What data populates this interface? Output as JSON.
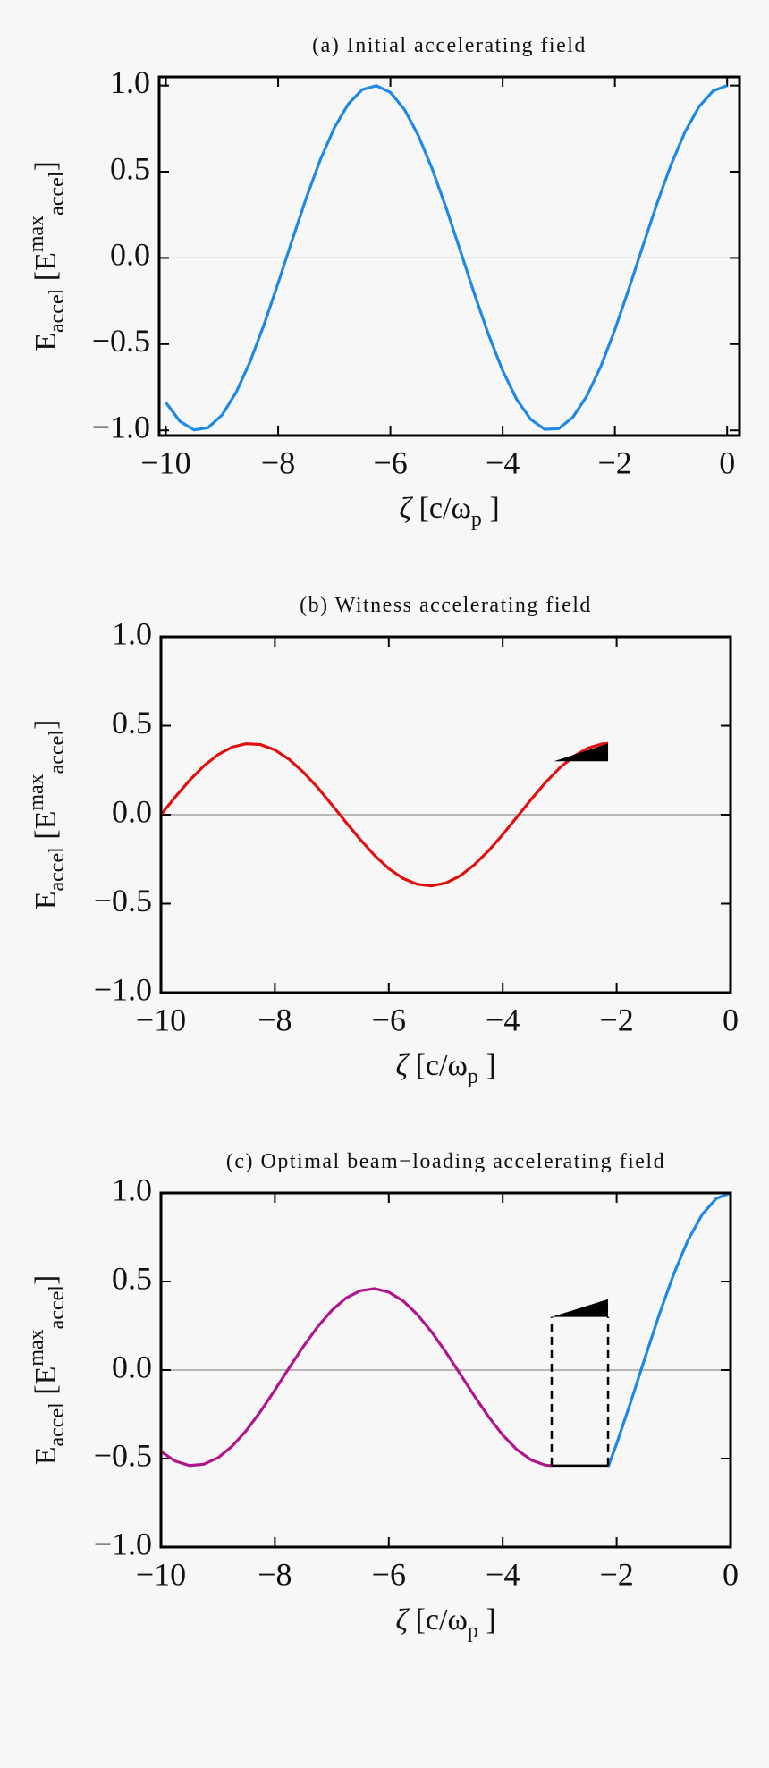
{
  "chart_data": [
    {
      "type": "line",
      "title": "(a) Initial accelerating field",
      "xlabel": [
        {
          "text": "ζ",
          "italic": true
        },
        {
          "text": " [c/ω"
        },
        {
          "text": "p",
          "shift": "sub"
        },
        {
          "text": " ]"
        }
      ],
      "ylabel": [
        {
          "text": "E"
        },
        {
          "text": "accel",
          "shift": "sub"
        },
        {
          "text": " [E"
        },
        {
          "text": "max",
          "shift": "sup"
        },
        {
          "text": "accel",
          "shift": "sub"
        },
        {
          "text": "]"
        }
      ],
      "xlim": [
        -10.12,
        0.22
      ],
      "ylim": [
        -1.03,
        1.05
      ],
      "xticks": [
        {
          "value": -10,
          "label": "−10"
        },
        {
          "value": -8,
          "label": "−8"
        },
        {
          "value": -6,
          "label": "−6"
        },
        {
          "value": -4,
          "label": "−4"
        },
        {
          "value": -2,
          "label": "−2"
        },
        0
      ],
      "yticks": [
        {
          "value": -1,
          "label": "−1.0"
        },
        {
          "value": -0.5,
          "label": "−0.5"
        },
        {
          "value": 0,
          "label": "0.0"
        },
        0.5,
        {
          "value": 1,
          "label": "1.0"
        }
      ],
      "zero_line": true,
      "series": [
        {
          "color": "#1e88e5",
          "x": [
            -10,
            -9.75,
            -9.5,
            -9.25,
            -9,
            -8.75,
            -8.5,
            -8.25,
            -8,
            -7.75,
            -7.5,
            -7.25,
            -7,
            -6.75,
            -6.5,
            -6.25,
            -6,
            -5.75,
            -5.5,
            -5.25,
            -5,
            -4.75,
            -4.5,
            -4.25,
            -4,
            -3.75,
            -3.5,
            -3.25,
            -3,
            -2.75,
            -2.5,
            -2.25,
            -2,
            -1.75,
            -1.5,
            -1.25,
            -1,
            -0.75,
            -0.5,
            -0.25,
            0
          ],
          "values": [
            -0.8391,
            -0.9476,
            -0.9972,
            -0.9848,
            -0.9111,
            -0.7807,
            -0.602,
            -0.3857,
            -0.1455,
            0.1037,
            0.3466,
            0.5683,
            0.7539,
            0.893,
            0.9766,
            0.9994,
            0.9602,
            0.8612,
            0.7087,
            0.5117,
            0.2837,
            0.0376,
            -0.2108,
            -0.4461,
            -0.6536,
            -0.8206,
            -0.9365,
            -0.9941,
            -0.99,
            -0.9243,
            -0.8011,
            -0.6282,
            -0.4161,
            -0.1782,
            0.0707,
            0.3153,
            0.5403,
            0.7317,
            0.8776,
            0.9689,
            1
          ]
        }
      ]
    },
    {
      "type": "line",
      "title": "(b) Witness accelerating field",
      "xlabel": [
        {
          "text": "ζ",
          "italic": true
        },
        {
          "text": " [c/ω"
        },
        {
          "text": "p",
          "shift": "sub"
        },
        {
          "text": " ]"
        }
      ],
      "ylabel": [
        {
          "text": "E"
        },
        {
          "text": "accel",
          "shift": "sub"
        },
        {
          "text": " [E"
        },
        {
          "text": "max",
          "shift": "sup"
        },
        {
          "text": "accel",
          "shift": "sub"
        },
        {
          "text": "]"
        }
      ],
      "xlim": [
        -10,
        0
      ],
      "ylim": [
        -1,
        1
      ],
      "xticks": [
        {
          "value": -10,
          "label": "−10"
        },
        {
          "value": -8,
          "label": "−8"
        },
        {
          "value": -6,
          "label": "−6"
        },
        {
          "value": -4,
          "label": "−4"
        },
        {
          "value": -2,
          "label": "−2"
        },
        0
      ],
      "yticks": [
        {
          "value": -1,
          "label": "−1.0"
        },
        {
          "value": -0.5,
          "label": "−0.5"
        },
        {
          "value": 0,
          "label": "0.0"
        },
        0.5,
        {
          "value": 1,
          "label": "1.0"
        }
      ],
      "zero_line": true,
      "series": [
        {
          "color": "#e01010",
          "x": [
            -10,
            -9.75,
            -9.5,
            -9.25,
            -9,
            -8.75,
            -8.5,
            -8.25,
            -8,
            -7.75,
            -7.5,
            -7.25,
            -7,
            -6.75,
            -6.5,
            -6.25,
            -6,
            -5.75,
            -5.5,
            -5.25,
            -5,
            -4.75,
            -4.5,
            -4.25,
            -4,
            -3.75,
            -3.5,
            -3.25,
            -3,
            -2.75,
            -2.5,
            -2.25,
            -2.15
          ],
          "values": [
            0,
            0.099,
            0.192,
            0.273,
            0.337,
            0.38,
            0.399,
            0.394,
            0.364,
            0.311,
            0.239,
            0.153,
            0.056,
            -0.043,
            -0.14,
            -0.229,
            -0.303,
            -0.358,
            -0.391,
            -0.4,
            -0.384,
            -0.344,
            -0.282,
            -0.203,
            -0.112,
            -0.013,
            0.086,
            0.18,
            0.263,
            0.329,
            0.375,
            0.398,
            0.4
          ]
        }
      ],
      "polygons": [
        {
          "color": "#000000",
          "x": [
            -3.1,
            -2.15,
            -2.15
          ],
          "y": [
            0.3,
            0.3,
            0.4
          ]
        }
      ]
    },
    {
      "type": "line",
      "title": "(c) Optimal beam−loading accelerating field",
      "xlabel": [
        {
          "text": "ζ",
          "italic": true
        },
        {
          "text": " [c/ω"
        },
        {
          "text": "p",
          "shift": "sub"
        },
        {
          "text": " ]"
        }
      ],
      "ylabel": [
        {
          "text": "E"
        },
        {
          "text": "accel",
          "shift": "sub"
        },
        {
          "text": " [E"
        },
        {
          "text": "max",
          "shift": "sup"
        },
        {
          "text": "accel",
          "shift": "sub"
        },
        {
          "text": "]"
        }
      ],
      "xlim": [
        -10,
        0
      ],
      "ylim": [
        -1,
        1
      ],
      "xticks": [
        {
          "value": -10,
          "label": "−10"
        },
        {
          "value": -8,
          "label": "−8"
        },
        {
          "value": -6,
          "label": "−6"
        },
        {
          "value": -4,
          "label": "−4"
        },
        {
          "value": -2,
          "label": "−2"
        },
        0
      ],
      "yticks": [
        {
          "value": -1,
          "label": "−1.0"
        },
        {
          "value": -0.5,
          "label": "−0.5"
        },
        {
          "value": 0,
          "label": "0.0"
        },
        0.5,
        {
          "value": 1,
          "label": "1.0"
        }
      ],
      "zero_line": true,
      "series": [
        {
          "color": "#b0168c",
          "x": [
            -10,
            -9.75,
            -9.5,
            -9.25,
            -9,
            -8.75,
            -8.5,
            -8.25,
            -8,
            -7.75,
            -7.5,
            -7.25,
            -7,
            -6.75,
            -6.5,
            -6.25,
            -6,
            -5.75,
            -5.5,
            -5.25,
            -5,
            -4.75,
            -4.5,
            -4.25,
            -4,
            -3.75,
            -3.5,
            -3.25,
            -3.14
          ],
          "values": [
            -0.46,
            -0.514,
            -0.539,
            -0.532,
            -0.496,
            -0.43,
            -0.341,
            -0.233,
            -0.113,
            0.012,
            0.133,
            0.244,
            0.337,
            0.407,
            0.448,
            0.46,
            0.44,
            0.391,
            0.314,
            0.216,
            0.102,
            -0.021,
            -0.145,
            -0.263,
            -0.367,
            -0.45,
            -0.508,
            -0.537,
            -0.54
          ]
        },
        {
          "color": "#1e88e5",
          "x": [
            -2.15,
            -2,
            -1.75,
            -1.5,
            -1.25,
            -1,
            -0.75,
            -0.5,
            -0.25,
            0
          ],
          "values": [
            -0.547,
            -0.4161,
            -0.1782,
            0.0707,
            0.3153,
            0.5403,
            0.7317,
            0.8776,
            0.9689,
            1
          ]
        }
      ],
      "segments": [
        {
          "color": "#000000",
          "dashed": true,
          "x": [
            -3.14,
            -3.14
          ],
          "y": [
            -0.54,
            0.3
          ]
        },
        {
          "color": "#000000",
          "dashed": true,
          "x": [
            -2.15,
            -2.15
          ],
          "y": [
            -0.54,
            0.3
          ]
        },
        {
          "color": "#000000",
          "dashed": false,
          "x": [
            -3.14,
            -2.15
          ],
          "y": [
            -0.54,
            -0.54
          ]
        }
      ],
      "polygons": [
        {
          "color": "#000000",
          "x": [
            -3.14,
            -2.15,
            -2.15
          ],
          "y": [
            0.3,
            0.3,
            0.4
          ]
        }
      ]
    }
  ]
}
